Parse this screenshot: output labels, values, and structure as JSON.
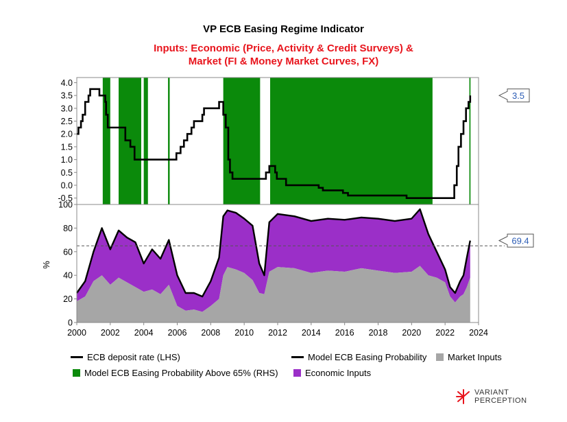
{
  "title": "VP ECB Easing Regime Indicator",
  "subtitle_line1": "Inputs: Economic (Price, Activity & Credit Surveys) &",
  "subtitle_line2": "Market (FI & Money Market Curves, FX)",
  "colors": {
    "subtitle": "#e8141c",
    "green": "#0b8a0b",
    "purple": "#9b2fc8",
    "gray": "#a6a6a6",
    "line": "#000000",
    "callout_text": "#2a5bb5"
  },
  "legend": [
    {
      "label": "ECB deposit rate (LHS)",
      "type": "line",
      "color": "#000000"
    },
    {
      "label": "Model ECB Easing Probability",
      "type": "line",
      "color": "#000000"
    },
    {
      "label": "Market Inputs",
      "type": "box",
      "color": "#a6a6a6"
    },
    {
      "label": "Model ECB Easing Probability Above 65% (RHS)",
      "type": "box",
      "color": "#0b8a0b"
    },
    {
      "label": "Economic Inputs",
      "type": "box",
      "color": "#9b2fc8"
    }
  ],
  "logo": {
    "line1": "VARIANT",
    "line2": "PERCEPTION"
  },
  "chart_data": [
    {
      "type": "line",
      "panel": "top",
      "ylim": [
        -0.75,
        4.2
      ],
      "yticks": [
        "4.0",
        "3.5",
        "3.0",
        "2.5",
        "2.0",
        "1.5",
        "1.0",
        "0.5",
        "0.0",
        "-0.5"
      ],
      "callout": "3.5",
      "series": [
        {
          "name": "ECB deposit rate (LHS)",
          "step_points": [
            [
              2000.0,
              2.0
            ],
            [
              2000.1,
              2.25
            ],
            [
              2000.25,
              2.5
            ],
            [
              2000.35,
              2.75
            ],
            [
              2000.5,
              3.25
            ],
            [
              2000.7,
              3.5
            ],
            [
              2000.8,
              3.75
            ],
            [
              2001.35,
              3.5
            ],
            [
              2001.7,
              3.25
            ],
            [
              2001.75,
              2.75
            ],
            [
              2001.85,
              2.25
            ],
            [
              2002.9,
              1.75
            ],
            [
              2003.2,
              1.5
            ],
            [
              2003.45,
              1.0
            ],
            [
              2005.95,
              1.25
            ],
            [
              2006.2,
              1.5
            ],
            [
              2006.4,
              1.75
            ],
            [
              2006.6,
              2.0
            ],
            [
              2006.85,
              2.25
            ],
            [
              2007.0,
              2.5
            ],
            [
              2007.5,
              2.75
            ],
            [
              2007.6,
              3.0
            ],
            [
              2008.5,
              3.25
            ],
            [
              2008.75,
              2.75
            ],
            [
              2008.9,
              2.25
            ],
            [
              2009.05,
              1.0
            ],
            [
              2009.15,
              0.5
            ],
            [
              2009.3,
              0.25
            ],
            [
              2011.3,
              0.5
            ],
            [
              2011.5,
              0.75
            ],
            [
              2011.85,
              0.5
            ],
            [
              2011.95,
              0.25
            ],
            [
              2012.5,
              0.0
            ],
            [
              2014.45,
              -0.1
            ],
            [
              2014.7,
              -0.2
            ],
            [
              2015.9,
              -0.3
            ],
            [
              2016.2,
              -0.4
            ],
            [
              2019.7,
              -0.5
            ],
            [
              2022.55,
              0.0
            ],
            [
              2022.7,
              0.75
            ],
            [
              2022.8,
              1.5
            ],
            [
              2022.95,
              2.0
            ],
            [
              2023.1,
              2.5
            ],
            [
              2023.25,
              3.0
            ],
            [
              2023.4,
              3.25
            ],
            [
              2023.5,
              3.5
            ]
          ]
        },
        {
          "name": "Model ECB Easing Probability Above 65% (RHS)",
          "shaded_periods": [
            [
              2001.55,
              2002.0
            ],
            [
              2002.5,
              2003.85
            ],
            [
              2004.0,
              2004.25
            ],
            [
              2005.45,
              2005.55
            ],
            [
              2008.75,
              2010.95
            ],
            [
              2011.55,
              2021.25
            ],
            [
              2023.45,
              2023.52
            ]
          ]
        }
      ]
    },
    {
      "type": "area",
      "panel": "bottom",
      "ylabel": "%",
      "ylim": [
        0,
        100
      ],
      "yticks": [
        "100",
        "80",
        "60",
        "40",
        "20",
        "0"
      ],
      "threshold": 65,
      "callout": "69.4",
      "x_tick_labels": [
        "2000",
        "2002",
        "2004",
        "2006",
        "2008",
        "2010",
        "2012",
        "2014",
        "2016",
        "2018",
        "2020",
        "2022",
        "2024"
      ],
      "x": [
        2000.0,
        2000.5,
        2001.0,
        2001.5,
        2002.0,
        2002.5,
        2003.0,
        2003.5,
        2004.0,
        2004.5,
        2005.0,
        2005.5,
        2006.0,
        2006.5,
        2007.0,
        2007.5,
        2008.0,
        2008.5,
        2008.75,
        2009.0,
        2009.5,
        2010.0,
        2010.5,
        2010.9,
        2011.2,
        2011.5,
        2012.0,
        2013.0,
        2014.0,
        2015.0,
        2016.0,
        2017.0,
        2018.0,
        2019.0,
        2020.0,
        2020.5,
        2021.0,
        2021.5,
        2022.0,
        2022.3,
        2022.6,
        2022.9,
        2023.1,
        2023.3,
        2023.5
      ],
      "series": [
        {
          "name": "Model ECB Easing Probability",
          "values": [
            25,
            35,
            60,
            80,
            62,
            78,
            72,
            68,
            50,
            62,
            54,
            70,
            40,
            25,
            25,
            22,
            35,
            55,
            90,
            95,
            93,
            88,
            82,
            50,
            40,
            85,
            92,
            90,
            86,
            88,
            87,
            89,
            88,
            86,
            88,
            96,
            75,
            60,
            45,
            30,
            25,
            35,
            40,
            55,
            69.4
          ]
        },
        {
          "name": "Market Inputs",
          "values": [
            18,
            22,
            35,
            40,
            32,
            38,
            34,
            30,
            26,
            28,
            24,
            32,
            14,
            10,
            11,
            9,
            14,
            20,
            40,
            47,
            45,
            42,
            36,
            25,
            24,
            43,
            47,
            46,
            42,
            44,
            43,
            46,
            44,
            42,
            43,
            48,
            40,
            38,
            34,
            22,
            17,
            22,
            24,
            30,
            38
          ]
        },
        {
          "name": "Economic Inputs"
        }
      ]
    }
  ]
}
